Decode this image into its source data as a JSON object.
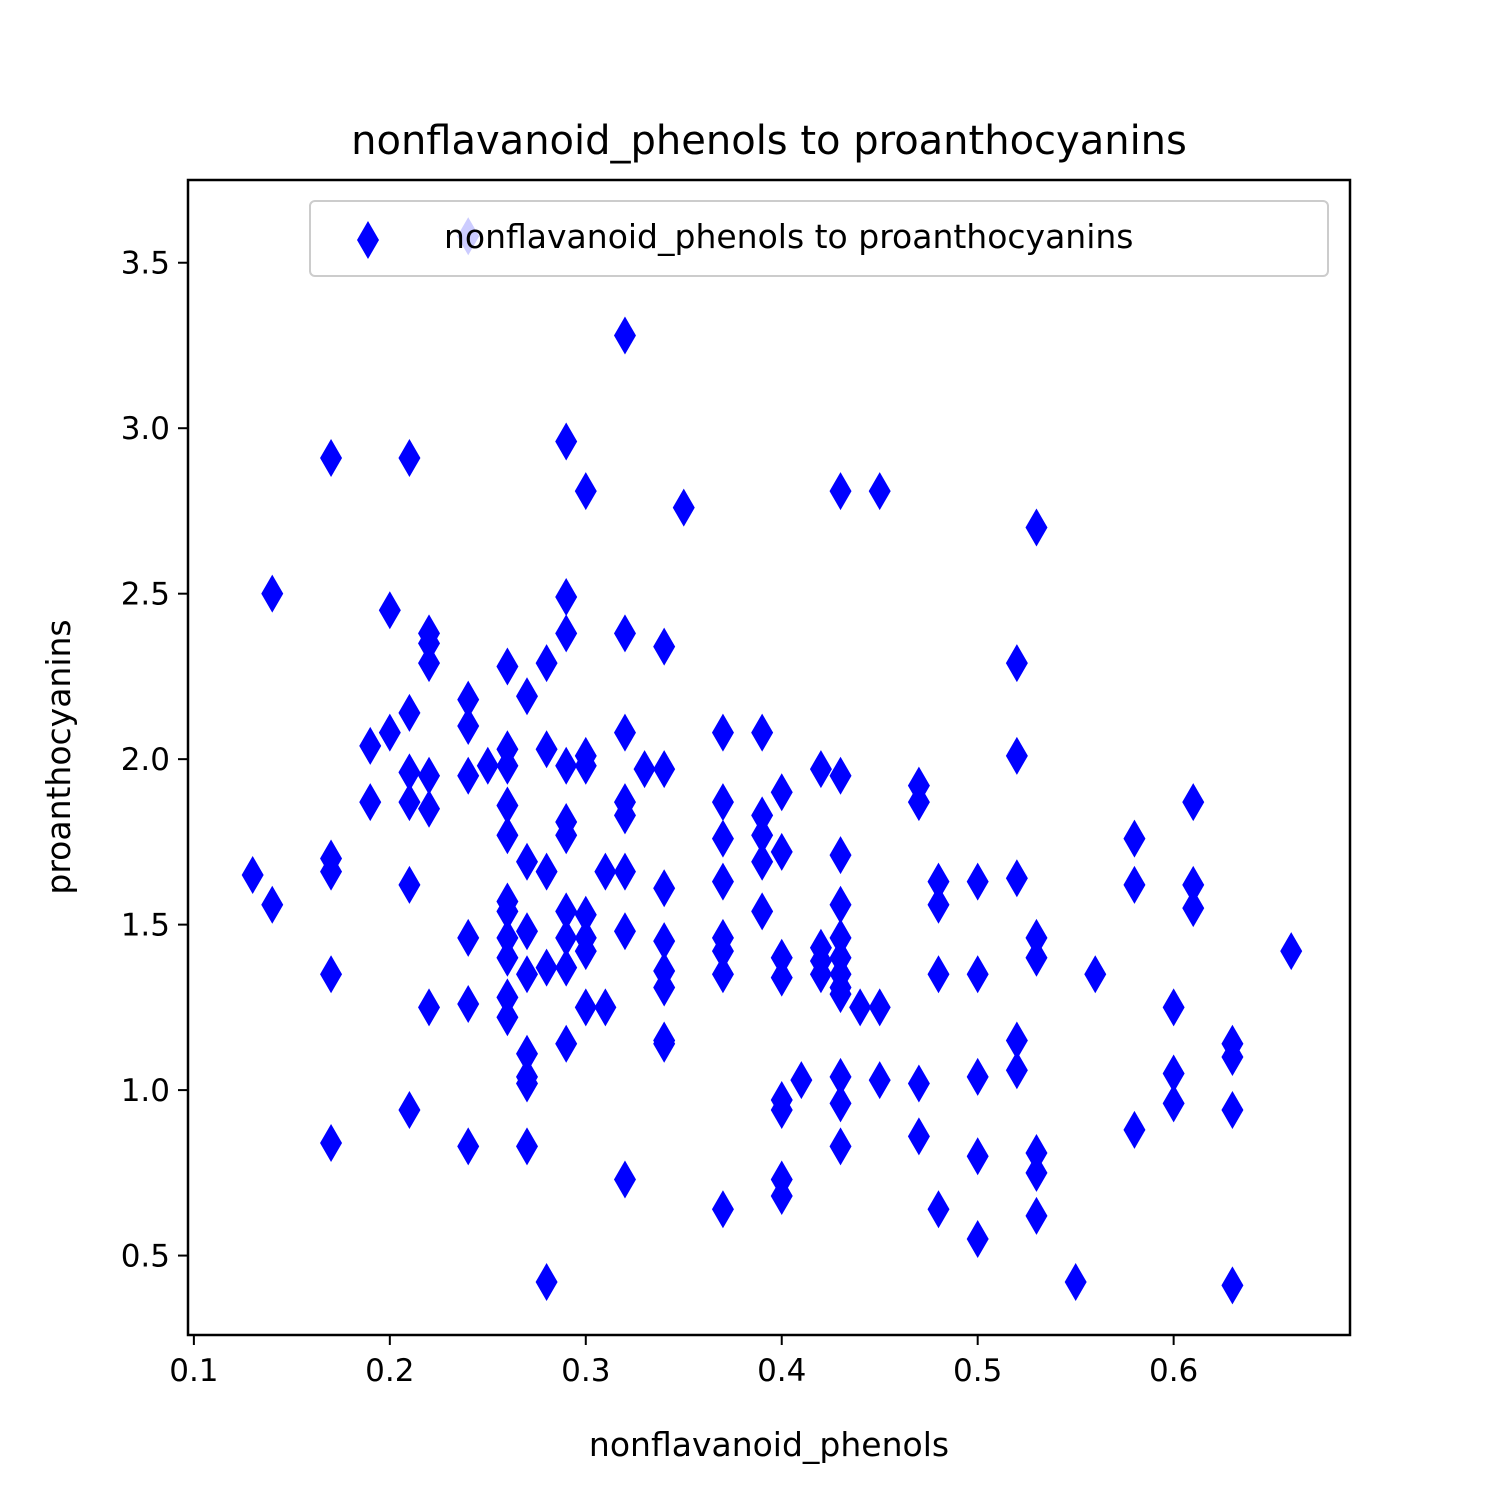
{
  "chart_data": {
    "type": "scatter",
    "title": "nonflavanoid_phenols to proanthocyanins",
    "xlabel": "nonflavanoid_phenols",
    "ylabel": "proanthocyanins",
    "xlim": [
      0.097,
      0.69
    ],
    "ylim": [
      0.26,
      3.75
    ],
    "xticks": [
      0.1,
      0.2,
      0.3,
      0.4,
      0.5,
      0.6
    ],
    "xtick_labels": [
      "0.1",
      "0.2",
      "0.3",
      "0.4",
      "0.5",
      "0.6"
    ],
    "yticks": [
      0.5,
      1.0,
      1.5,
      2.0,
      2.5,
      3.0,
      3.5
    ],
    "ytick_labels": [
      "0.5",
      "1.0",
      "1.5",
      "2.0",
      "2.5",
      "3.0",
      "3.5"
    ],
    "grid": false,
    "legend": {
      "position": "top-right",
      "entries": [
        "nonflavanoid_phenols to proanthocyanins"
      ]
    },
    "marker": "thin-diamond",
    "series": [
      {
        "name": "nonflavanoid_phenols to proanthocyanins",
        "color": "#0000ff",
        "points": [
          [
            0.13,
            1.65
          ],
          [
            0.14,
            2.5
          ],
          [
            0.14,
            1.56
          ],
          [
            0.17,
            2.91
          ],
          [
            0.17,
            1.7
          ],
          [
            0.17,
            1.66
          ],
          [
            0.17,
            1.35
          ],
          [
            0.17,
            0.84
          ],
          [
            0.19,
            2.04
          ],
          [
            0.19,
            1.87
          ],
          [
            0.2,
            2.45
          ],
          [
            0.2,
            2.08
          ],
          [
            0.21,
            2.91
          ],
          [
            0.21,
            2.14
          ],
          [
            0.21,
            1.96
          ],
          [
            0.21,
            1.87
          ],
          [
            0.21,
            1.62
          ],
          [
            0.21,
            0.94
          ],
          [
            0.22,
            2.38
          ],
          [
            0.22,
            2.35
          ],
          [
            0.22,
            2.29
          ],
          [
            0.22,
            1.95
          ],
          [
            0.22,
            1.85
          ],
          [
            0.22,
            1.25
          ],
          [
            0.24,
            3.58
          ],
          [
            0.24,
            2.18
          ],
          [
            0.24,
            2.1
          ],
          [
            0.24,
            1.95
          ],
          [
            0.24,
            1.46
          ],
          [
            0.24,
            1.26
          ],
          [
            0.24,
            0.83
          ],
          [
            0.25,
            1.98
          ],
          [
            0.26,
            2.28
          ],
          [
            0.26,
            2.03
          ],
          [
            0.26,
            1.98
          ],
          [
            0.26,
            1.86
          ],
          [
            0.26,
            1.77
          ],
          [
            0.26,
            1.57
          ],
          [
            0.26,
            1.54
          ],
          [
            0.26,
            1.46
          ],
          [
            0.26,
            1.4
          ],
          [
            0.26,
            1.28
          ],
          [
            0.26,
            1.22
          ],
          [
            0.27,
            2.19
          ],
          [
            0.27,
            1.69
          ],
          [
            0.27,
            1.48
          ],
          [
            0.27,
            1.35
          ],
          [
            0.27,
            1.11
          ],
          [
            0.27,
            1.04
          ],
          [
            0.27,
            1.02
          ],
          [
            0.27,
            0.83
          ],
          [
            0.28,
            2.29
          ],
          [
            0.28,
            2.03
          ],
          [
            0.28,
            1.66
          ],
          [
            0.28,
            1.37
          ],
          [
            0.28,
            0.42
          ],
          [
            0.29,
            2.96
          ],
          [
            0.29,
            2.49
          ],
          [
            0.29,
            2.38
          ],
          [
            0.29,
            1.98
          ],
          [
            0.29,
            1.81
          ],
          [
            0.29,
            1.77
          ],
          [
            0.29,
            1.54
          ],
          [
            0.29,
            1.46
          ],
          [
            0.29,
            1.37
          ],
          [
            0.29,
            1.14
          ],
          [
            0.3,
            2.81
          ],
          [
            0.3,
            2.01
          ],
          [
            0.3,
            1.98
          ],
          [
            0.3,
            1.53
          ],
          [
            0.3,
            1.46
          ],
          [
            0.3,
            1.42
          ],
          [
            0.3,
            1.25
          ],
          [
            0.31,
            1.66
          ],
          [
            0.31,
            1.25
          ],
          [
            0.32,
            3.28
          ],
          [
            0.32,
            2.38
          ],
          [
            0.32,
            2.08
          ],
          [
            0.32,
            1.87
          ],
          [
            0.32,
            1.83
          ],
          [
            0.32,
            1.66
          ],
          [
            0.32,
            1.48
          ],
          [
            0.32,
            0.73
          ],
          [
            0.33,
            1.97
          ],
          [
            0.34,
            2.34
          ],
          [
            0.34,
            1.97
          ],
          [
            0.34,
            1.61
          ],
          [
            0.34,
            1.45
          ],
          [
            0.34,
            1.36
          ],
          [
            0.34,
            1.31
          ],
          [
            0.34,
            1.15
          ],
          [
            0.34,
            1.14
          ],
          [
            0.35,
            2.76
          ],
          [
            0.37,
            2.08
          ],
          [
            0.37,
            1.87
          ],
          [
            0.37,
            1.76
          ],
          [
            0.37,
            1.63
          ],
          [
            0.37,
            1.46
          ],
          [
            0.37,
            1.42
          ],
          [
            0.37,
            1.35
          ],
          [
            0.37,
            0.64
          ],
          [
            0.39,
            2.08
          ],
          [
            0.39,
            1.83
          ],
          [
            0.39,
            1.77
          ],
          [
            0.39,
            1.69
          ],
          [
            0.39,
            1.54
          ],
          [
            0.4,
            1.9
          ],
          [
            0.4,
            1.72
          ],
          [
            0.4,
            1.4
          ],
          [
            0.4,
            1.34
          ],
          [
            0.4,
            0.97
          ],
          [
            0.4,
            0.94
          ],
          [
            0.4,
            0.73
          ],
          [
            0.4,
            0.68
          ],
          [
            0.41,
            1.03
          ],
          [
            0.42,
            1.97
          ],
          [
            0.42,
            1.43
          ],
          [
            0.42,
            1.39
          ],
          [
            0.42,
            1.35
          ],
          [
            0.43,
            2.81
          ],
          [
            0.43,
            1.95
          ],
          [
            0.43,
            1.71
          ],
          [
            0.43,
            1.56
          ],
          [
            0.43,
            1.46
          ],
          [
            0.43,
            1.4
          ],
          [
            0.43,
            1.35
          ],
          [
            0.43,
            1.31
          ],
          [
            0.43,
            1.29
          ],
          [
            0.43,
            1.04
          ],
          [
            0.43,
            0.96
          ],
          [
            0.43,
            0.83
          ],
          [
            0.44,
            1.25
          ],
          [
            0.45,
            2.81
          ],
          [
            0.45,
            1.25
          ],
          [
            0.45,
            1.03
          ],
          [
            0.47,
            1.92
          ],
          [
            0.47,
            1.87
          ],
          [
            0.47,
            1.02
          ],
          [
            0.47,
            0.86
          ],
          [
            0.48,
            1.63
          ],
          [
            0.48,
            1.56
          ],
          [
            0.48,
            1.35
          ],
          [
            0.48,
            0.64
          ],
          [
            0.5,
            1.63
          ],
          [
            0.5,
            1.35
          ],
          [
            0.5,
            1.04
          ],
          [
            0.5,
            0.8
          ],
          [
            0.5,
            0.55
          ],
          [
            0.52,
            2.29
          ],
          [
            0.52,
            2.01
          ],
          [
            0.52,
            1.64
          ],
          [
            0.52,
            1.15
          ],
          [
            0.52,
            1.06
          ],
          [
            0.53,
            2.7
          ],
          [
            0.53,
            1.46
          ],
          [
            0.53,
            1.4
          ],
          [
            0.53,
            0.81
          ],
          [
            0.53,
            0.75
          ],
          [
            0.53,
            0.62
          ],
          [
            0.55,
            0.42
          ],
          [
            0.56,
            1.35
          ],
          [
            0.58,
            1.76
          ],
          [
            0.58,
            1.62
          ],
          [
            0.58,
            0.88
          ],
          [
            0.6,
            1.25
          ],
          [
            0.6,
            1.05
          ],
          [
            0.6,
            0.96
          ],
          [
            0.61,
            1.87
          ],
          [
            0.61,
            1.62
          ],
          [
            0.61,
            1.55
          ],
          [
            0.63,
            1.14
          ],
          [
            0.63,
            1.1
          ],
          [
            0.63,
            0.94
          ],
          [
            0.63,
            0.41
          ],
          [
            0.66,
            1.42
          ]
        ]
      }
    ]
  }
}
